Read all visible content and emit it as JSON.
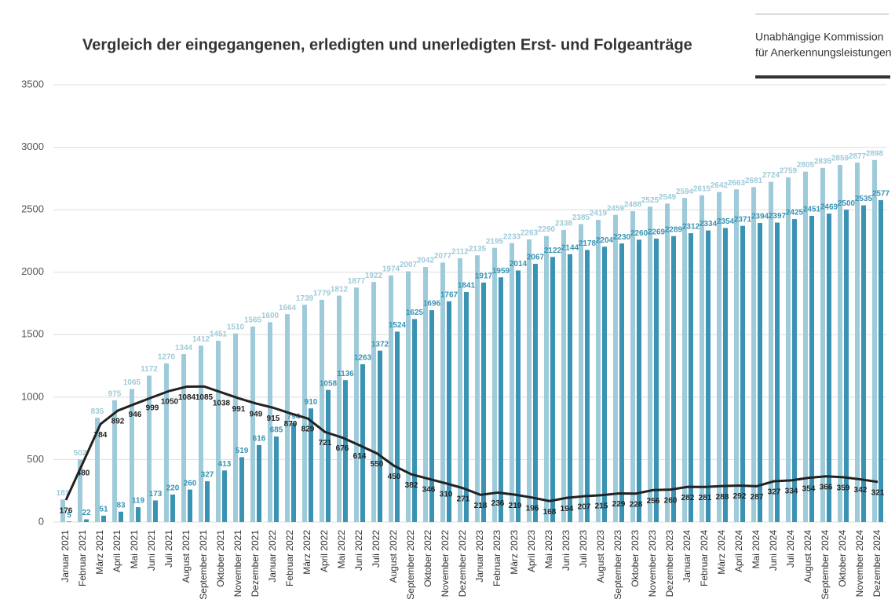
{
  "logo": [
    "Unabhängige Kommission",
    "für Anerkennungsleistungen"
  ],
  "chart_data": {
    "type": "bar-line",
    "title": "Vergleich der eingegangenen, erledigten und unerledigten Erst- und Folgeanträge",
    "categories": [
      "Januar 2021",
      "Februar 2021",
      "März 2021",
      "April 2021",
      "Mai 2021",
      "Juni 2021",
      "Juli 2021",
      "August 2021",
      "September 2021",
      "Oktober 2021",
      "November 2021",
      "Dezember 2021",
      "Januar 2022",
      "Februar 2022",
      "März 2022",
      "April 2022",
      "Mai 2022",
      "Juni 2022",
      "Juli 2022",
      "August 2022",
      "September 2022",
      "Oktober 2022",
      "November 2022",
      "Dezember 2022",
      "Januar 2023",
      "Februar 2023",
      "März 2023",
      "April 2023",
      "Mai 2023",
      "Juni 2023",
      "Juli 2023",
      "August 2023",
      "September 2023",
      "Oktober 2023",
      "November 2023",
      "Dezember 2023",
      "Januar 2024",
      "Februar 2024",
      "März 2024",
      "April 2024",
      "Mai 2024",
      "Juni 2024",
      "Juli 2024",
      "August 2024",
      "September 2024",
      "Oktober 2024",
      "November 2024",
      "Dezember 2024"
    ],
    "series": [
      {
        "kind": "bar",
        "color": "#9ecbd9",
        "values": [
          181,
          502,
          835,
          975,
          1065,
          1172,
          1270,
          1344,
          1412,
          1451,
          1510,
          1565,
          1600,
          1664,
          1739,
          1779,
          1812,
          1877,
          1922,
          1974,
          2007,
          2042,
          2077,
          2112,
          2135,
          2195,
          2233,
          2263,
          2290,
          2338,
          2385,
          2419,
          2459,
          2488,
          2525,
          2549,
          2594,
          2615,
          2642,
          2663,
          2681,
          2724,
          2759,
          2805,
          2835,
          2859,
          2877,
          2898
        ]
      },
      {
        "kind": "bar",
        "color": "#3a93b3",
        "values": [
          5,
          22,
          51,
          83,
          119,
          173,
          220,
          260,
          327,
          413,
          519,
          616,
          685,
          794,
          910,
          1058,
          1136,
          1263,
          1372,
          1524,
          1625,
          1696,
          1767,
          1841,
          1917,
          1959,
          2014,
          2067,
          2122,
          2144,
          2178,
          2204,
          2230,
          2260,
          2269,
          2289,
          2312,
          2334,
          2354,
          2371,
          2394,
          2397,
          2425,
          2451,
          2469,
          2500,
          2535,
          2577
        ]
      },
      {
        "kind": "line",
        "color": "#222222",
        "values": [
          176,
          480,
          784,
          892,
          946,
          999,
          1050,
          1084,
          1085,
          1038,
          991,
          949,
          915,
          870,
          829,
          721,
          676,
          614,
          550,
          450,
          382,
          346,
          310,
          271,
          218,
          236,
          219,
          196,
          168,
          194,
          207,
          215,
          229,
          228,
          256,
          260,
          282,
          281,
          288,
          292,
          287,
          327,
          334,
          354,
          366,
          359,
          342,
          321
        ]
      }
    ],
    "ylim": [
      0,
      3500
    ],
    "yticks": [
      0,
      500,
      1000,
      1500,
      2000,
      2500,
      3000,
      3500
    ],
    "grid": true
  }
}
